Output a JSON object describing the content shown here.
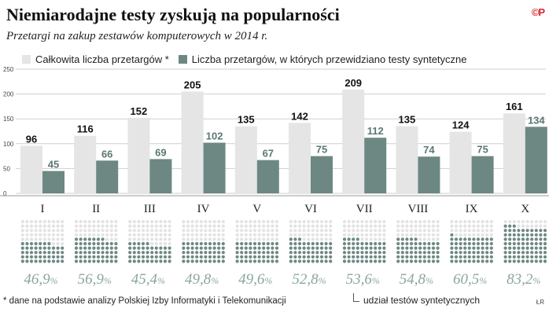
{
  "header": {
    "title": "Niemiarodajne testy zyskują na popularności",
    "subtitle": "Przetargi na zakup zestawów komputerowych w 2014 r.",
    "logo_text": "©P"
  },
  "legend": {
    "total_label": "Całkowita liczba przetargów *",
    "synthetic_label": "Liczba przetargów, w których przewidziano testy syntetyczne"
  },
  "footer": {
    "footnote": "* dane na podstawie analizy Polskiej Izby Informatyki i Telekomunikacji",
    "share_label": "udział testów syntetycznych",
    "signature": "ŁR"
  },
  "colors": {
    "total_bar": "#e5e5e5",
    "synthetic_bar": "#6d8883",
    "synthetic_label": "#5b7772",
    "dot_filled": "#6d8883",
    "dot_empty": "#e3e3e3",
    "percent_text": "#8aa5a0"
  },
  "chart_data": {
    "type": "bar",
    "categories": [
      "I",
      "II",
      "III",
      "IV",
      "V",
      "VI",
      "VII",
      "VIII",
      "IX",
      "X"
    ],
    "ylim": [
      0,
      250
    ],
    "yticks": [
      0,
      50,
      100,
      150,
      200,
      250
    ],
    "grid": true,
    "series": [
      {
        "name": "Całkowita liczba przetargów *",
        "values": [
          96,
          116,
          152,
          205,
          135,
          142,
          209,
          135,
          124,
          161
        ]
      },
      {
        "name": "Liczba przetargów, w których przewidziano testy syntetyczne",
        "values": [
          45,
          66,
          69,
          102,
          67,
          75,
          112,
          74,
          75,
          134
        ]
      }
    ],
    "share_percent_labels": [
      "46,9",
      "56,9",
      "45,4",
      "49,8",
      "49,6",
      "52,8",
      "53,6",
      "54,8",
      "60,5",
      "83,2"
    ],
    "share_percent_values": [
      46.9,
      56.9,
      45.4,
      49.8,
      49.6,
      52.8,
      53.6,
      54.8,
      60.5,
      83.2
    ],
    "percent_sign": "%"
  }
}
